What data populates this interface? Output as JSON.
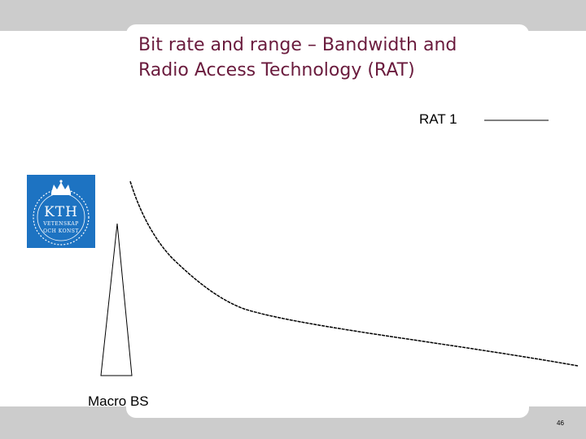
{
  "slide": {
    "title_lines": [
      "Bit rate and range – Bandwidth and",
      "Radio Access Technology (RAT)"
    ],
    "page_number": "46"
  },
  "logo": {
    "name": "KTH",
    "line1": "VETENSKAP",
    "line2": "OCH KONST",
    "color": "#1d73c2"
  },
  "diagram": {
    "legend_label": "RAT 1",
    "base_station_label": "Macro BS",
    "title_color": "#6a1b3d"
  }
}
